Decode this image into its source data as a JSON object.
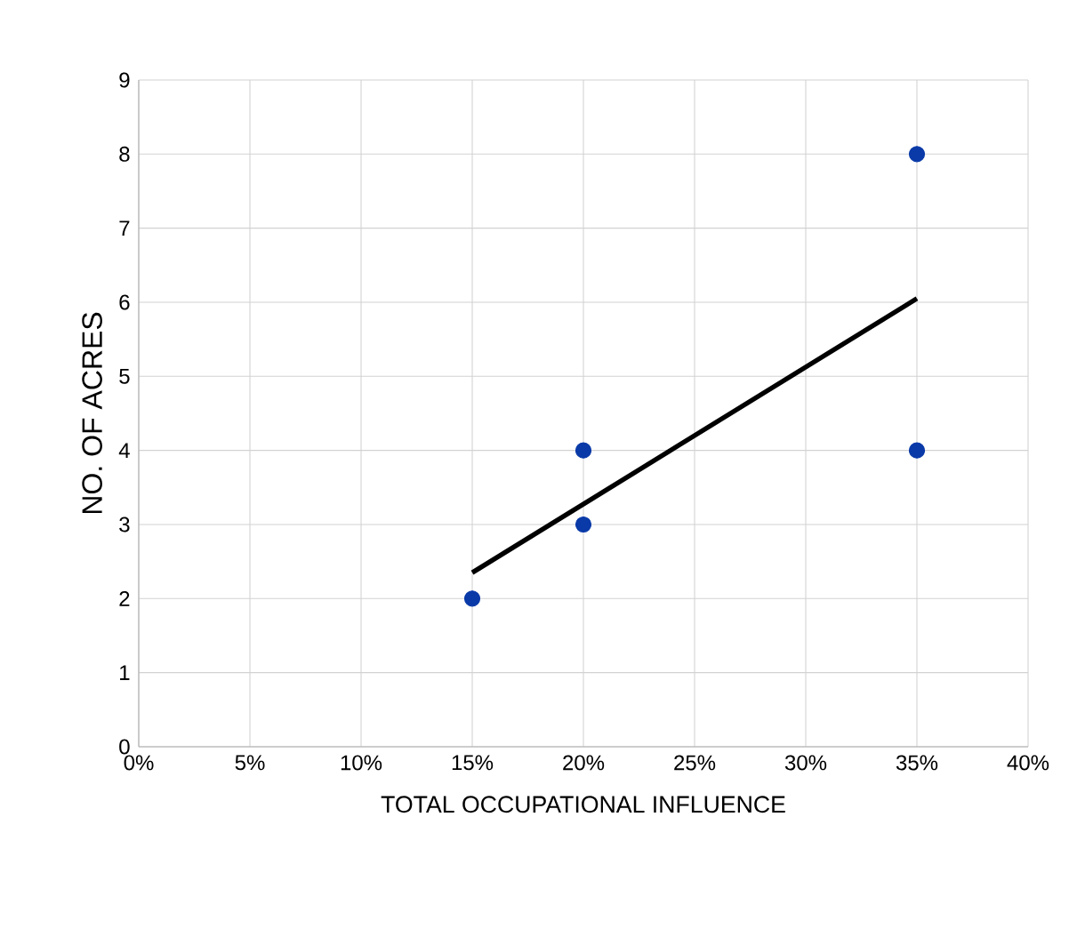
{
  "chart_data": {
    "type": "scatter",
    "xlabel": "TOTAL OCCUPATIONAL INFLUENCE",
    "ylabel": "NO. OF ACRES",
    "series": [
      {
        "color": "#0a3aa8",
        "marker": "circle",
        "x": [
          15,
          20,
          20,
          35,
          35
        ],
        "values": [
          2,
          3,
          4,
          4,
          8
        ]
      },
      {
        "type": "line",
        "color": "#000000",
        "marker": "none",
        "line_style": "solid",
        "x": [
          15,
          35
        ],
        "values": [
          2.35,
          6.05
        ]
      }
    ],
    "xlim": [
      0,
      40
    ],
    "ylim": [
      0,
      9
    ],
    "xticks": [
      {
        "value": 0,
        "label": "0%"
      },
      {
        "value": 5,
        "label": "5%"
      },
      {
        "value": 10,
        "label": "10%"
      },
      {
        "value": 15,
        "label": "15%"
      },
      {
        "value": 20,
        "label": "20%"
      },
      {
        "value": 25,
        "label": "25%"
      },
      {
        "value": 30,
        "label": "30%"
      },
      {
        "value": 35,
        "label": "35%"
      },
      {
        "value": 40,
        "label": "40%"
      }
    ],
    "yticks": [
      0,
      1,
      2,
      3,
      4,
      5,
      6,
      7,
      8,
      9
    ],
    "grid": true
  }
}
